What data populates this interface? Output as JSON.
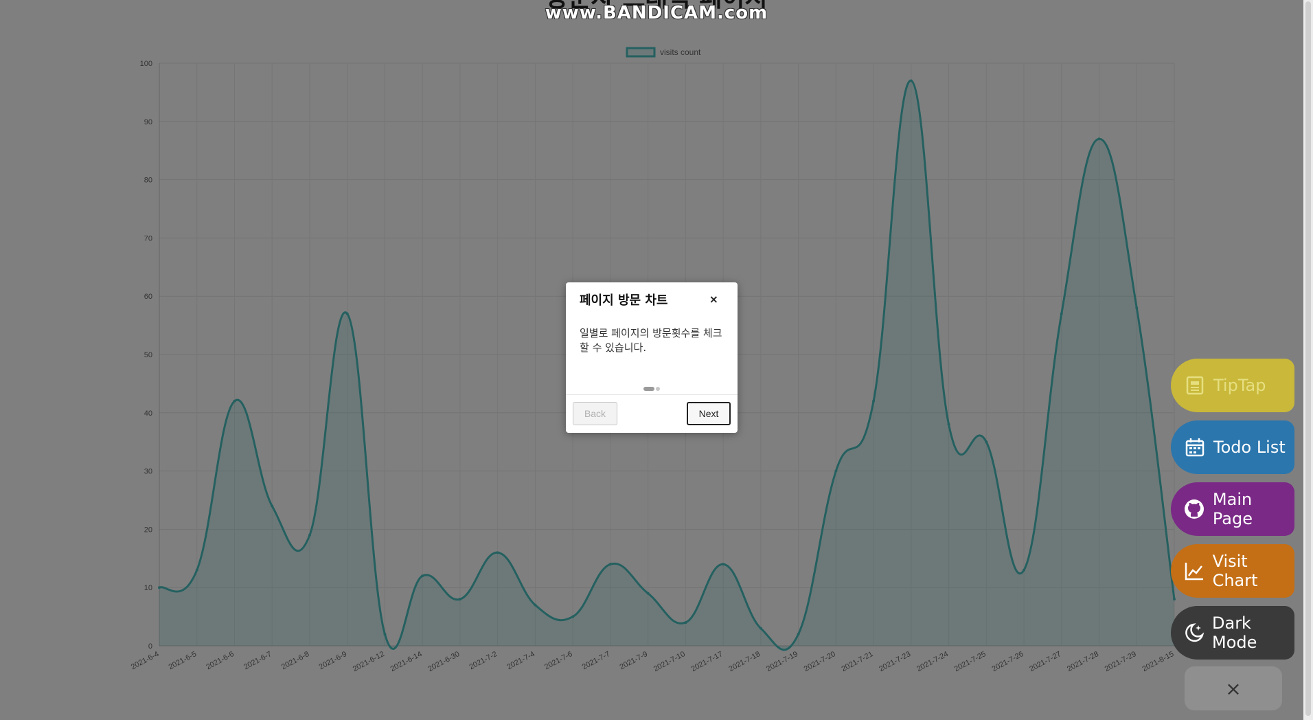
{
  "page": {
    "title": "방문자 트래픽 페이지",
    "watermark": "www.BANDICAM.com"
  },
  "chart_data": {
    "type": "area",
    "title": "",
    "legend": {
      "position": "top",
      "labels": [
        "visits count"
      ]
    },
    "categories": [
      "2021-6-4",
      "2021-6-5",
      "2021-6-6",
      "2021-6-7",
      "2021-6-8",
      "2021-6-9",
      "2021-6-12",
      "2021-6-14",
      "2021-6-30",
      "2021-7-2",
      "2021-7-4",
      "2021-7-6",
      "2021-7-7",
      "2021-7-9",
      "2021-7-10",
      "2021-7-17",
      "2021-7-18",
      "2021-7-19",
      "2021-7-20",
      "2021-7-21",
      "2021-7-23",
      "2021-7-24",
      "2021-7-25",
      "2021-7-26",
      "2021-7-27",
      "2021-7-28",
      "2021-7-29",
      "2021-8-15"
    ],
    "series": [
      {
        "name": "visits count",
        "values": [
          10,
          13,
          42,
          24,
          19,
          57,
          2,
          12,
          8,
          16,
          7,
          5,
          14,
          9,
          4,
          14,
          3,
          2,
          30,
          42,
          97,
          38,
          35,
          13,
          57,
          87,
          58,
          8
        ],
        "color": "#4bc0c0"
      }
    ],
    "ylim": [
      0,
      100
    ],
    "yticks": [
      0,
      10,
      20,
      30,
      40,
      50,
      60,
      70,
      80,
      90,
      100
    ],
    "grid": true
  },
  "tour": {
    "title": "페이지 방문 차트",
    "close_label": "×",
    "description": "일별로 페이지의 방문횟수를 체크할 수 있습니다.",
    "steps": 2,
    "active_step": 1,
    "back_label": "Back",
    "next_label": "Next"
  },
  "fab": {
    "items": [
      {
        "label": "TipTap",
        "icon": "document-icon",
        "color": "#c9b83a"
      },
      {
        "label": "Todo List",
        "icon": "calendar-icon",
        "color": "#2b76ad"
      },
      {
        "label": "Main Page",
        "icon": "github-icon",
        "color": "#7a2a86"
      },
      {
        "label": "Visit Chart",
        "icon": "line-chart-icon",
        "color": "#c46f16"
      },
      {
        "label": "Dark Mode",
        "icon": "moon-star-icon",
        "color": "#3a3a3a"
      }
    ],
    "close_label": "×"
  }
}
